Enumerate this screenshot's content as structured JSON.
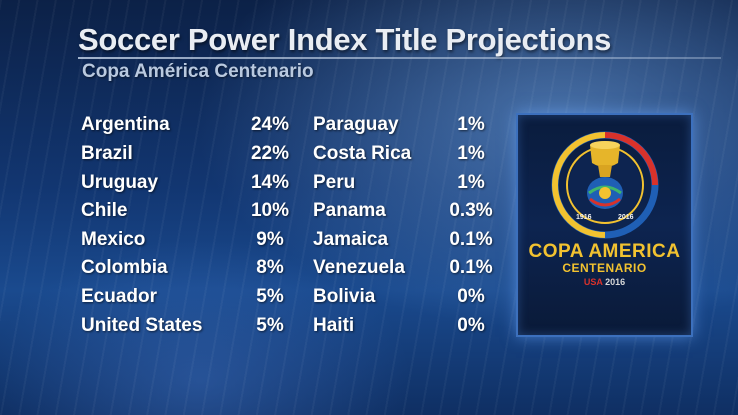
{
  "header": {
    "title": "Soccer Power Index Title Projections",
    "subtitle": "Copa América Centenario"
  },
  "left_column": [
    {
      "team": "Argentina",
      "pct": "24%"
    },
    {
      "team": "Brazil",
      "pct": "22%"
    },
    {
      "team": "Uruguay",
      "pct": "14%"
    },
    {
      "team": "Chile",
      "pct": "10%"
    },
    {
      "team": "Mexico",
      "pct": "9%"
    },
    {
      "team": "Colombia",
      "pct": "8%"
    },
    {
      "team": "Ecuador",
      "pct": "5%"
    },
    {
      "team": "United States",
      "pct": "5%"
    }
  ],
  "right_column": [
    {
      "team": "Paraguay",
      "pct": "1%"
    },
    {
      "team": "Costa Rica",
      "pct": "1%"
    },
    {
      "team": "Peru",
      "pct": "1%"
    },
    {
      "team": "Panama",
      "pct": "0.3%"
    },
    {
      "team": "Jamaica",
      "pct": "0.1%"
    },
    {
      "team": "Venezuela",
      "pct": "0.1%"
    },
    {
      "team": "Bolivia",
      "pct": "0%"
    },
    {
      "team": "Haiti",
      "pct": "0%"
    }
  ],
  "logo": {
    "line1": "COPA AMERICA",
    "line2": "CENTENARIO",
    "usa": "USA",
    "year": "2016",
    "ring_left": "1916",
    "ring_right": "2016"
  },
  "colors": {
    "background": "#123671",
    "logo_gold": "#f2c230",
    "logo_red": "#d9322b",
    "logo_blue": "#1f5fb5",
    "frame_border": "#3c70bd"
  },
  "icons": [
    "copa-america-logo"
  ]
}
